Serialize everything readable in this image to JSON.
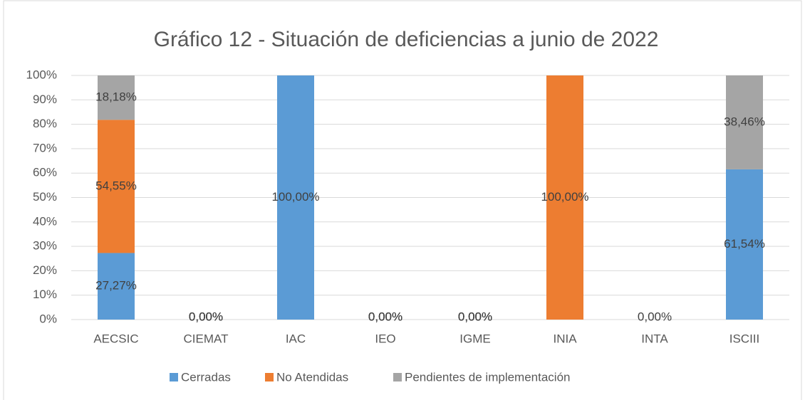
{
  "chart_data": {
    "type": "stacked_bar",
    "title": "Gráfico 12 - Situación de deficiencias a junio de 2022",
    "categories": [
      "AECSIC",
      "CIEMAT",
      "IAC",
      "IEO",
      "IGME",
      "INIA",
      "INTA",
      "ISCIII"
    ],
    "series": [
      {
        "name": "Cerradas",
        "color": "#5b9bd5",
        "values": [
          27.27,
          0,
          100,
          0,
          0,
          null,
          0,
          61.54
        ],
        "value_labels": [
          "27,27%",
          "0,00%",
          "100,00%",
          "0,00%",
          "0,00%",
          null,
          "0,00%",
          "61,54%"
        ]
      },
      {
        "name": "No Atendidas",
        "color": "#ed7d31",
        "values": [
          54.55,
          0,
          null,
          0,
          0,
          100,
          null,
          null
        ],
        "value_labels": [
          "54,55%",
          "0,00%",
          null,
          "0,00%",
          "0,00%",
          "100,00%",
          null,
          null
        ]
      },
      {
        "name": "Pendientes de implementación",
        "color": "#a5a5a5",
        "values": [
          18.18,
          0,
          null,
          0,
          0,
          null,
          null,
          38.46
        ],
        "value_labels": [
          "18,18%",
          "0,00%",
          null,
          "0,00%",
          "0,00%",
          null,
          null,
          "38,46%"
        ]
      }
    ],
    "ylim": [
      0,
      100
    ],
    "yticks": [
      {
        "value": 0,
        "label": "0%"
      },
      {
        "value": 10,
        "label": "10%"
      },
      {
        "value": 20,
        "label": "20%"
      },
      {
        "value": 30,
        "label": "30%"
      },
      {
        "value": 40,
        "label": "40%"
      },
      {
        "value": 50,
        "label": "50%"
      },
      {
        "value": 60,
        "label": "60%"
      },
      {
        "value": 70,
        "label": "70%"
      },
      {
        "value": 80,
        "label": "80%"
      },
      {
        "value": 90,
        "label": "90%"
      },
      {
        "value": 100,
        "label": "100%"
      }
    ],
    "grid": true,
    "legend": "bottom"
  }
}
